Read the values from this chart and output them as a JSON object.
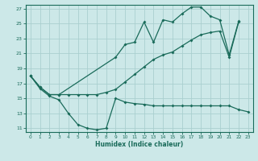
{
  "xlabel": "Humidex (Indice chaleur)",
  "bg_color": "#cce8e8",
  "grid_color": "#aacfcf",
  "line_color": "#1a6b5a",
  "xlim": [
    -0.5,
    23.5
  ],
  "ylim": [
    10.5,
    27.5
  ],
  "yticks": [
    11,
    13,
    15,
    17,
    19,
    21,
    23,
    25,
    27
  ],
  "xticks": [
    0,
    1,
    2,
    3,
    4,
    5,
    6,
    7,
    8,
    9,
    10,
    11,
    12,
    13,
    14,
    15,
    16,
    17,
    18,
    19,
    20,
    21,
    22,
    23
  ],
  "curve_bottom_x": [
    0,
    1,
    2,
    3,
    4,
    5,
    6,
    7,
    8,
    9,
    10,
    11,
    12,
    13,
    14,
    15,
    16,
    17,
    18,
    19,
    20,
    21,
    22,
    23
  ],
  "curve_bottom_y": [
    18.0,
    16.3,
    15.3,
    14.8,
    13.0,
    11.5,
    11.0,
    10.8,
    11.0,
    15.0,
    14.5,
    14.3,
    14.2,
    14.0,
    14.0,
    14.0,
    14.0,
    14.0,
    14.0,
    14.0,
    14.0,
    14.0,
    13.5,
    13.2
  ],
  "curve_mid_x": [
    0,
    1,
    2,
    3,
    4,
    5,
    6,
    7,
    8,
    9,
    10,
    11,
    12,
    13,
    14,
    15,
    16,
    17,
    18,
    19,
    20,
    21,
    22
  ],
  "curve_mid_y": [
    18.0,
    16.5,
    15.5,
    15.5,
    15.5,
    15.5,
    15.5,
    15.5,
    15.8,
    16.2,
    17.2,
    18.2,
    19.2,
    20.2,
    20.8,
    21.2,
    22.0,
    22.8,
    23.5,
    23.8,
    24.0,
    20.5,
    25.2
  ],
  "curve_top_x": [
    0,
    1,
    2,
    3,
    9,
    10,
    11,
    12,
    13,
    14,
    15,
    16,
    17,
    18,
    19,
    20,
    21,
    22
  ],
  "curve_top_y": [
    18.0,
    16.5,
    15.5,
    15.5,
    20.5,
    22.2,
    22.5,
    25.2,
    22.5,
    25.5,
    25.2,
    26.3,
    27.2,
    27.2,
    26.0,
    25.5,
    20.8,
    25.3
  ]
}
